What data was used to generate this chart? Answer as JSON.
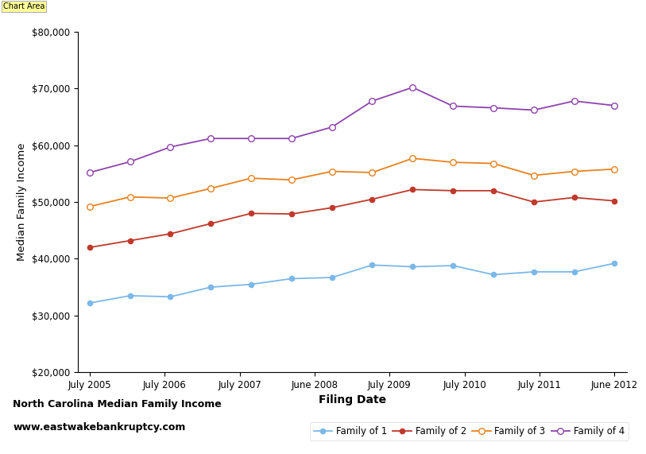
{
  "family1": [
    32200,
    33500,
    33300,
    35000,
    35500,
    36500,
    36700,
    38900,
    38600,
    38800,
    37200,
    37700,
    37700,
    39200
  ],
  "family2": [
    42000,
    43200,
    44400,
    46200,
    48000,
    47900,
    49000,
    50500,
    52200,
    52000,
    52000,
    50000,
    50800,
    50200
  ],
  "family3": [
    49200,
    50900,
    50700,
    52400,
    54200,
    53900,
    55400,
    55200,
    57700,
    57000,
    56800,
    54700,
    55400,
    55800
  ],
  "family4": [
    55200,
    57100,
    59700,
    61200,
    61200,
    61200,
    63200,
    67800,
    70200,
    66900,
    66600,
    66200,
    67800,
    67000
  ],
  "color1": "#7bb8e8",
  "color2": "#c0392b",
  "color3": "#e8821e",
  "color4": "#8e44ad",
  "tick_labels": [
    "July 2005",
    "July 2006",
    "July 2007",
    "June 2008",
    "July 2009",
    "July 2010",
    "July 2011",
    "June 2012"
  ],
  "ylabel": "Median Family Income",
  "xlabel": "Filing Date",
  "ylim_low": 20000,
  "ylim_high": 80000,
  "yticks": [
    20000,
    30000,
    40000,
    50000,
    60000,
    70000,
    80000
  ],
  "title_left_line1": "North Carolina Median Family Income",
  "title_left_line2": "www.eastwakebankruptcy.com",
  "chart_area_label": "Chart Area",
  "legend_labels": [
    "Family of 1",
    "Family of 2",
    "Family of 3",
    "Family of 4"
  ]
}
